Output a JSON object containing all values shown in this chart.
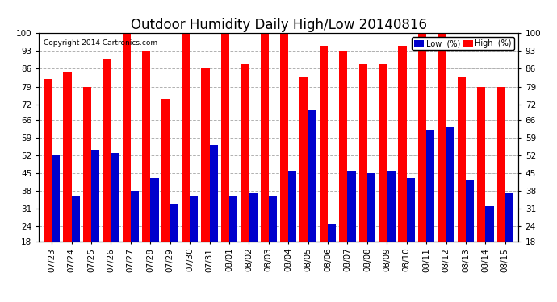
{
  "title": "Outdoor Humidity Daily High/Low 20140816",
  "copyright": "Copyright 2014 Cartronics.com",
  "categories": [
    "07/23",
    "07/24",
    "07/25",
    "07/26",
    "07/27",
    "07/28",
    "07/29",
    "07/30",
    "07/31",
    "08/01",
    "08/02",
    "08/03",
    "08/04",
    "08/05",
    "08/06",
    "08/07",
    "08/08",
    "08/09",
    "08/10",
    "08/11",
    "08/12",
    "08/13",
    "08/14",
    "08/15"
  ],
  "high_values": [
    82,
    85,
    79,
    90,
    100,
    93,
    74,
    100,
    86,
    100,
    88,
    100,
    100,
    83,
    95,
    93,
    88,
    88,
    95,
    100,
    100,
    83,
    79,
    79
  ],
  "low_values": [
    52,
    36,
    54,
    53,
    38,
    43,
    33,
    36,
    56,
    36,
    37,
    36,
    46,
    70,
    25,
    46,
    45,
    46,
    43,
    62,
    63,
    42,
    32,
    37
  ],
  "high_color": "#ff0000",
  "low_color": "#0000cc",
  "bg_color": "#ffffff",
  "plot_bg_color": "#ffffff",
  "grid_color": "#b0b0b0",
  "yticks": [
    18,
    24,
    31,
    38,
    45,
    52,
    59,
    66,
    72,
    79,
    86,
    93,
    100
  ],
  "ymin": 18,
  "ymax": 100,
  "bar_width": 0.42,
  "title_fontsize": 12,
  "tick_fontsize": 7.5,
  "legend_low_label": "Low  (%)",
  "legend_high_label": "High  (%)"
}
